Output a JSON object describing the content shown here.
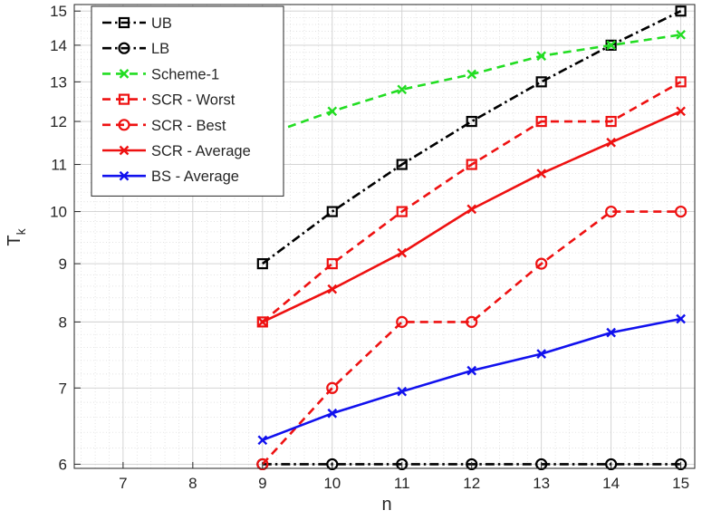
{
  "chart_data": {
    "type": "line",
    "title": "",
    "xlabel": "n",
    "ylabel": "T",
    "ylabel_subscript": "k",
    "y_scale": "log",
    "xlim": [
      6.3,
      15.2
    ],
    "ylim": [
      5.95,
      15.2
    ],
    "grid": true,
    "minor_grid": true,
    "legend_position": "top-left",
    "x_ticks": [
      7,
      8,
      9,
      10,
      11,
      12,
      13,
      14,
      15
    ],
    "x_tick_labels": [
      "7",
      "8",
      "9",
      "10",
      "11",
      "12",
      "13",
      "14",
      "15"
    ],
    "y_ticks": [
      6,
      7,
      8,
      9,
      10,
      11,
      12,
      13,
      14,
      15
    ],
    "y_tick_labels": [
      "6",
      "7",
      "8",
      "9",
      "10",
      "11",
      "12",
      "13",
      "14",
      "15"
    ],
    "x": [
      9,
      10,
      11,
      12,
      13,
      14,
      15
    ],
    "series": [
      {
        "name": "UB",
        "values": [
          9,
          10,
          11,
          12,
          13,
          14,
          15
        ],
        "color": "#000000",
        "dash": "dashdot",
        "marker": "square"
      },
      {
        "name": "LB",
        "values": [
          6,
          6,
          6,
          6,
          6,
          6,
          6
        ],
        "color": "#000000",
        "dash": "dashdot",
        "marker": "circle"
      },
      {
        "name": "Scheme-1",
        "values": [
          11.65,
          12.25,
          12.8,
          13.2,
          13.7,
          14.0,
          14.3
        ],
        "color": "#22dd22",
        "dash": "dashed",
        "marker": "x"
      },
      {
        "name": "SCR - Worst",
        "values": [
          8,
          9,
          10,
          11,
          12,
          12,
          13
        ],
        "color": "#ee1111",
        "dash": "dashed",
        "marker": "square"
      },
      {
        "name": "SCR - Best",
        "values": [
          6,
          7,
          8,
          8,
          9,
          10,
          10
        ],
        "color": "#ee1111",
        "dash": "dashed",
        "marker": "circle"
      },
      {
        "name": "SCR - Average",
        "values": [
          8,
          8.55,
          9.2,
          10.05,
          10.8,
          11.5,
          12.25
        ],
        "color": "#ee1111",
        "dash": "solid",
        "marker": "x"
      },
      {
        "name": "BS - Average",
        "values": [
          6.3,
          6.65,
          6.95,
          7.25,
          7.5,
          7.83,
          8.05
        ],
        "color": "#1111ee",
        "dash": "solid",
        "marker": "x"
      }
    ]
  }
}
